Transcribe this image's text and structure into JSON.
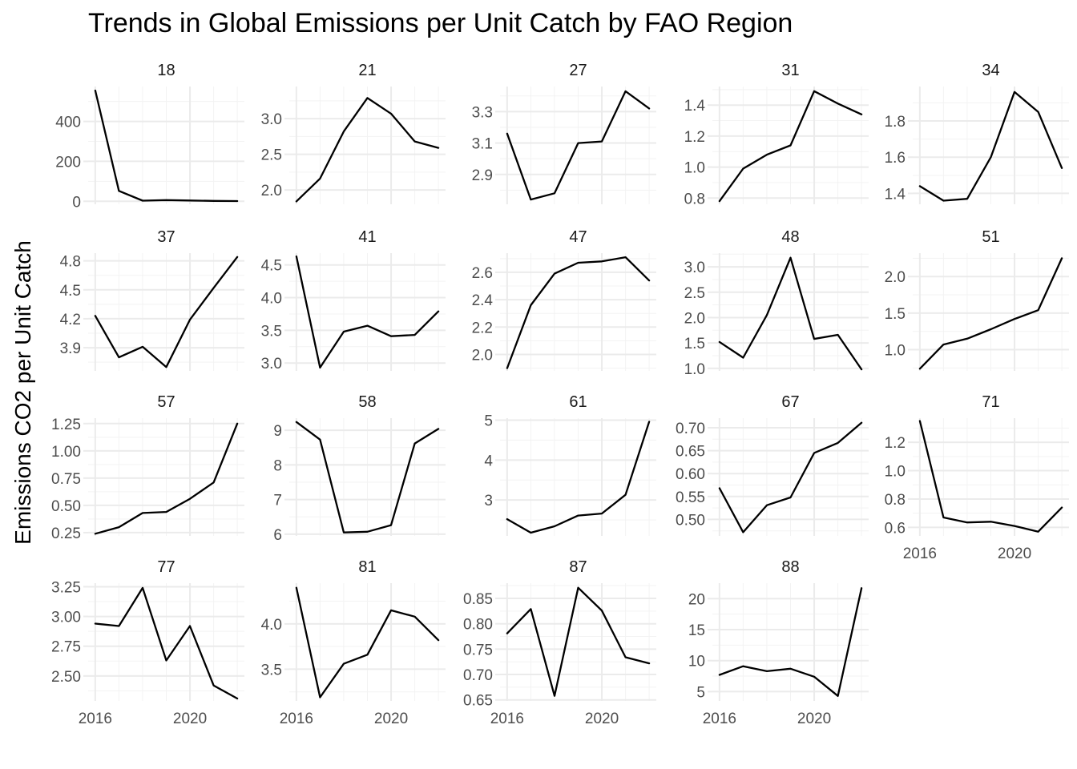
{
  "chart_data": {
    "type": "line",
    "title": "Trends in Global Emissions per Unit Catch by FAO Region",
    "xlabel": "",
    "ylabel": "Emissions CO2 per Unit Catch",
    "x": [
      2016,
      2017,
      2018,
      2019,
      2020,
      2021,
      2022
    ],
    "x_ticks": [
      2016,
      2020
    ],
    "x_tick_labels": [
      "2016",
      "2020"
    ],
    "grid": true,
    "facets": [
      {
        "name": "18",
        "values": [
          555,
          52,
          3,
          6,
          4,
          2,
          1
        ],
        "ylim": [
          -15,
          575
        ],
        "yticks": [
          0,
          200,
          400
        ],
        "ytick_labels": [
          "0",
          "200",
          "400"
        ]
      },
      {
        "name": "21",
        "values": [
          1.84,
          2.16,
          2.82,
          3.29,
          3.07,
          2.68,
          2.59
        ],
        "ylim": [
          1.8,
          3.45
        ],
        "yticks": [
          2.0,
          2.5,
          3.0
        ],
        "ytick_labels": [
          "2.0",
          "2.5",
          "3.0"
        ]
      },
      {
        "name": "27",
        "values": [
          3.16,
          2.74,
          2.78,
          3.1,
          3.11,
          3.43,
          3.32
        ],
        "ylim": [
          2.71,
          3.46
        ],
        "yticks": [
          2.9,
          3.1,
          3.3
        ],
        "ytick_labels": [
          "2.9",
          "3.1",
          "3.3"
        ]
      },
      {
        "name": "31",
        "values": [
          0.78,
          0.99,
          1.08,
          1.14,
          1.49,
          1.41,
          1.34
        ],
        "ylim": [
          0.76,
          1.52
        ],
        "yticks": [
          0.8,
          1.0,
          1.2,
          1.4
        ],
        "ytick_labels": [
          "0.8",
          "1.0",
          "1.2",
          "1.4"
        ]
      },
      {
        "name": "34",
        "values": [
          1.44,
          1.36,
          1.37,
          1.6,
          1.96,
          1.85,
          1.54
        ],
        "ylim": [
          1.34,
          1.99
        ],
        "yticks": [
          1.4,
          1.6,
          1.8
        ],
        "ytick_labels": [
          "1.4",
          "1.6",
          "1.8"
        ]
      },
      {
        "name": "37",
        "values": [
          4.23,
          3.8,
          3.91,
          3.7,
          4.19,
          4.52,
          4.84
        ],
        "ylim": [
          3.66,
          4.88
        ],
        "yticks": [
          3.9,
          4.2,
          4.5,
          4.8
        ],
        "ytick_labels": [
          "3.9",
          "4.2",
          "4.5",
          "4.8"
        ]
      },
      {
        "name": "41",
        "values": [
          4.63,
          2.93,
          3.48,
          3.57,
          3.41,
          3.43,
          3.79
        ],
        "ylim": [
          2.88,
          4.68
        ],
        "yticks": [
          3.0,
          3.5,
          4.0,
          4.5
        ],
        "ytick_labels": [
          "3.0",
          "3.5",
          "4.0",
          "4.5"
        ]
      },
      {
        "name": "47",
        "values": [
          1.9,
          2.36,
          2.59,
          2.67,
          2.68,
          2.71,
          2.54
        ],
        "ylim": [
          1.88,
          2.74
        ],
        "yticks": [
          2.0,
          2.2,
          2.4,
          2.6
        ],
        "ytick_labels": [
          "2.0",
          "2.2",
          "2.4",
          "2.6"
        ]
      },
      {
        "name": "48",
        "values": [
          1.52,
          1.21,
          2.05,
          3.18,
          1.58,
          1.66,
          0.98
        ],
        "ylim": [
          0.95,
          3.27
        ],
        "yticks": [
          1.0,
          1.5,
          2.0,
          2.5,
          3.0
        ],
        "ytick_labels": [
          "1.0",
          "1.5",
          "2.0",
          "2.5",
          "3.0"
        ]
      },
      {
        "name": "51",
        "values": [
          0.74,
          1.07,
          1.15,
          1.28,
          1.42,
          1.54,
          2.25
        ],
        "ylim": [
          0.71,
          2.32
        ],
        "yticks": [
          1.0,
          1.5,
          2.0
        ],
        "ytick_labels": [
          "1.0",
          "1.5",
          "2.0"
        ]
      },
      {
        "name": "57",
        "values": [
          0.24,
          0.3,
          0.43,
          0.44,
          0.56,
          0.71,
          1.25
        ],
        "ylim": [
          0.22,
          1.3
        ],
        "yticks": [
          0.25,
          0.5,
          0.75,
          1.0,
          1.25
        ],
        "ytick_labels": [
          "0.25",
          "0.50",
          "0.75",
          "1.00",
          "1.25"
        ]
      },
      {
        "name": "58",
        "values": [
          9.24,
          8.73,
          6.05,
          6.07,
          6.26,
          8.62,
          9.04
        ],
        "ylim": [
          5.95,
          9.35
        ],
        "yticks": [
          6,
          7,
          8,
          9
        ],
        "ytick_labels": [
          "6",
          "7",
          "8",
          "9"
        ]
      },
      {
        "name": "61",
        "values": [
          2.52,
          2.18,
          2.34,
          2.61,
          2.66,
          3.13,
          4.96
        ],
        "ylim": [
          2.1,
          5.05
        ],
        "yticks": [
          3,
          4,
          5
        ],
        "ytick_labels": [
          "3",
          "4",
          "5"
        ]
      },
      {
        "name": "67",
        "values": [
          0.568,
          0.472,
          0.531,
          0.548,
          0.645,
          0.667,
          0.711
        ],
        "ylim": [
          0.464,
          0.721
        ],
        "yticks": [
          0.5,
          0.55,
          0.6,
          0.65,
          0.7
        ],
        "ytick_labels": [
          "0.50",
          "0.55",
          "0.60",
          "0.65",
          "0.70"
        ]
      },
      {
        "name": "71",
        "values": [
          1.35,
          0.67,
          0.635,
          0.64,
          0.61,
          0.57,
          0.74
        ],
        "ylim": [
          0.54,
          1.37
        ],
        "yticks": [
          0.6,
          0.8,
          1.0,
          1.2
        ],
        "ytick_labels": [
          "0.6",
          "0.8",
          "1.0",
          "1.2"
        ]
      },
      {
        "name": "77",
        "values": [
          2.94,
          2.92,
          3.24,
          2.63,
          2.92,
          2.42,
          2.31
        ],
        "ylim": [
          2.29,
          3.28
        ],
        "yticks": [
          2.5,
          2.75,
          3.0,
          3.25
        ],
        "ytick_labels": [
          "2.50",
          "2.75",
          "3.00",
          "3.25"
        ]
      },
      {
        "name": "81",
        "values": [
          4.4,
          3.19,
          3.56,
          3.66,
          4.15,
          4.08,
          3.82
        ],
        "ylim": [
          3.15,
          4.45
        ],
        "yticks": [
          3.5,
          4.0
        ],
        "ytick_labels": [
          "3.5",
          "4.0"
        ]
      },
      {
        "name": "87",
        "values": [
          0.781,
          0.829,
          0.658,
          0.871,
          0.826,
          0.734,
          0.722
        ],
        "ylim": [
          0.648,
          0.88
        ],
        "yticks": [
          0.65,
          0.7,
          0.75,
          0.8,
          0.85
        ],
        "ytick_labels": [
          "0.65",
          "0.70",
          "0.75",
          "0.80",
          "0.85"
        ]
      },
      {
        "name": "88",
        "values": [
          7.7,
          9.1,
          8.3,
          8.7,
          7.4,
          4.3,
          21.7
        ],
        "ylim": [
          3.5,
          22.5
        ],
        "yticks": [
          5,
          10,
          15,
          20
        ],
        "ytick_labels": [
          "5",
          "10",
          "15",
          "20"
        ]
      }
    ]
  }
}
